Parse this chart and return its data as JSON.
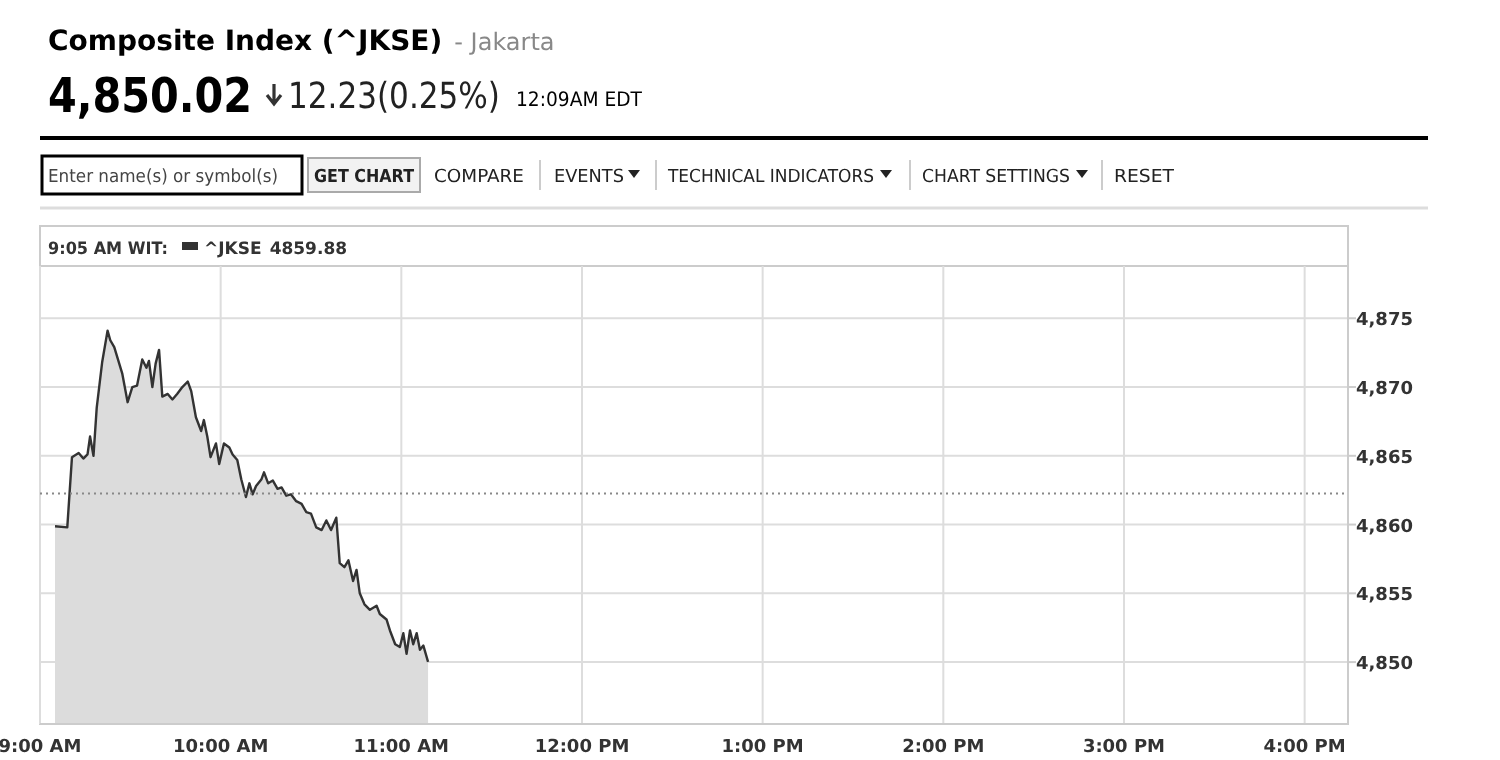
{
  "chart_data": {
    "type": "area",
    "title": "Composite Index (^JKSE)",
    "subtitle": "- Jakarta",
    "annotations": [
      "4,850.02",
      "12.23(0.25%)",
      "12:09AM EDT",
      "Enter name(s) or symbol(s)",
      "GET CHART",
      "COMPARE",
      "EVENTS",
      "TECHNICAL INDICATORS",
      "CHART SETTINGS",
      "RESET",
      "9:05 AM WIT:",
      "4859.88"
    ],
    "xlim": [
      9,
      16.24
    ],
    "xticks": [
      {
        "value": 9,
        "label": "9:00 AM"
      },
      {
        "value": 10,
        "label": "10:00 AM"
      },
      {
        "value": 11,
        "label": "11:00 AM"
      },
      {
        "value": 12,
        "label": "12:00 PM"
      },
      {
        "value": 13,
        "label": "1:00 PM"
      },
      {
        "value": 14,
        "label": "2:00 PM"
      },
      {
        "value": 15,
        "label": "3:00 PM"
      },
      {
        "value": 16,
        "label": "4:00 PM"
      }
    ],
    "ylim": [
      4845.5,
      4878.8
    ],
    "yticks": [
      {
        "value": 4850,
        "label": "4,850"
      },
      {
        "value": 4855,
        "label": "4,855"
      },
      {
        "value": 4860,
        "label": "4,860"
      },
      {
        "value": 4865,
        "label": "4,865"
      },
      {
        "value": 4870,
        "label": "4,870"
      },
      {
        "value": 4875,
        "label": "4,875"
      }
    ],
    "grid": true,
    "legend": "top left",
    "ref_lines": [
      {
        "axis": "y",
        "value": 4862.25,
        "line_style": "dotted",
        "color": "#888888"
      }
    ],
    "series": [
      {
        "name": "^JKSE",
        "color": "#333333",
        "x": [
          9.083,
          9.151,
          9.177,
          9.214,
          9.24,
          9.263,
          9.277,
          9.296,
          9.314,
          9.344,
          9.374,
          9.389,
          9.411,
          9.455,
          9.485,
          9.511,
          9.537,
          9.566,
          9.589,
          9.603,
          9.622,
          9.64,
          9.659,
          9.677,
          9.707,
          9.733,
          9.759,
          9.788,
          9.818,
          9.837,
          9.863,
          9.892,
          9.907,
          9.926,
          9.944,
          9.974,
          9.992,
          10.018,
          10.048,
          10.066,
          10.092,
          10.114,
          10.14,
          10.159,
          10.177,
          10.196,
          10.226,
          10.24,
          10.263,
          10.289,
          10.315,
          10.337,
          10.363,
          10.389,
          10.418,
          10.448,
          10.474,
          10.5,
          10.529,
          10.559,
          10.585,
          10.611,
          10.64,
          10.659,
          10.685,
          10.707,
          10.733,
          10.752,
          10.77,
          10.796,
          10.826,
          10.863,
          10.881,
          10.918,
          10.937,
          10.966,
          10.992,
          11.011,
          11.029,
          11.048,
          11.066,
          11.085,
          11.103,
          11.122,
          11.148
        ],
        "values": [
          4859.88,
          4859.8,
          4864.9,
          4865.2,
          4864.8,
          4865.1,
          4866.4,
          4865.0,
          4868.5,
          4871.8,
          4874.1,
          4873.4,
          4872.9,
          4871.0,
          4868.9,
          4870.0,
          4870.1,
          4872.0,
          4871.4,
          4871.9,
          4870.0,
          4871.7,
          4872.7,
          4869.3,
          4869.5,
          4869.1,
          4869.5,
          4870.0,
          4870.4,
          4869.7,
          4867.8,
          4866.8,
          4867.6,
          4866.4,
          4864.9,
          4865.9,
          4864.4,
          4865.9,
          4865.6,
          4865.1,
          4864.7,
          4863.3,
          4862.0,
          4863.0,
          4862.2,
          4862.8,
          4863.3,
          4863.8,
          4863.0,
          4863.2,
          4862.6,
          4862.7,
          4862.1,
          4862.2,
          4861.7,
          4861.5,
          4860.9,
          4860.8,
          4859.8,
          4859.6,
          4860.3,
          4859.6,
          4860.5,
          4857.2,
          4856.9,
          4857.4,
          4855.9,
          4856.7,
          4855.0,
          4854.2,
          4853.8,
          4854.1,
          4853.5,
          4853.1,
          4852.3,
          4851.3,
          4851.1,
          4852.1,
          4850.6,
          4852.3,
          4851.3,
          4852.1,
          4850.9,
          4851.2,
          4850.02
        ]
      }
    ]
  }
}
